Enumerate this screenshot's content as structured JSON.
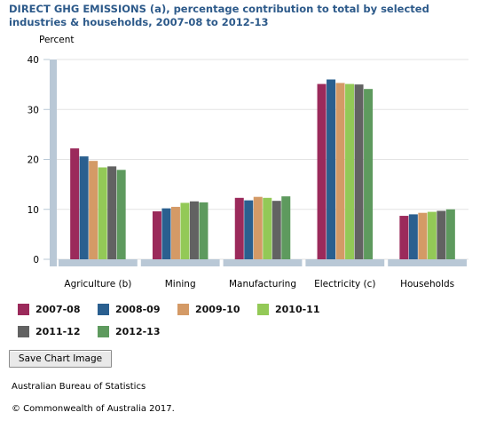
{
  "chart_data": {
    "type": "bar",
    "title": "DIRECT GHG EMISSIONS (a), percentage contribution to total by selected industries & households, 2007-08 to 2012-13",
    "ylabel": "Percent",
    "xlabel": "",
    "ylim": [
      0,
      40
    ],
    "yticks": [
      0,
      10,
      20,
      30,
      40
    ],
    "grid": true,
    "legend_position": "bottom",
    "categories": [
      "Agriculture (b)",
      "Mining",
      "Manufacturing",
      "Electricity (c)",
      "Households"
    ],
    "series": [
      {
        "name": "2007-08",
        "color": "#9b2a5b",
        "values": [
          22.2,
          9.6,
          12.3,
          35.1,
          8.7
        ]
      },
      {
        "name": "2008-09",
        "color": "#2a5f8f",
        "values": [
          20.6,
          10.2,
          11.8,
          36.0,
          9.0
        ]
      },
      {
        "name": "2009-10",
        "color": "#d49a66",
        "values": [
          19.7,
          10.5,
          12.5,
          35.3,
          9.3
        ]
      },
      {
        "name": "2010-11",
        "color": "#93c957",
        "values": [
          18.4,
          11.3,
          12.3,
          35.1,
          9.5
        ]
      },
      {
        "name": "2011-12",
        "color": "#626262",
        "values": [
          18.6,
          11.6,
          11.7,
          35.0,
          9.7
        ]
      },
      {
        "name": "2012-13",
        "color": "#5e9a5e",
        "values": [
          17.9,
          11.4,
          12.6,
          34.1,
          10.0
        ]
      }
    ]
  },
  "controls": {
    "save_label": "Save Chart Image"
  },
  "footer": {
    "source": "Australian Bureau of Statistics",
    "copyright": "© Commonwealth of Australia 2017."
  }
}
